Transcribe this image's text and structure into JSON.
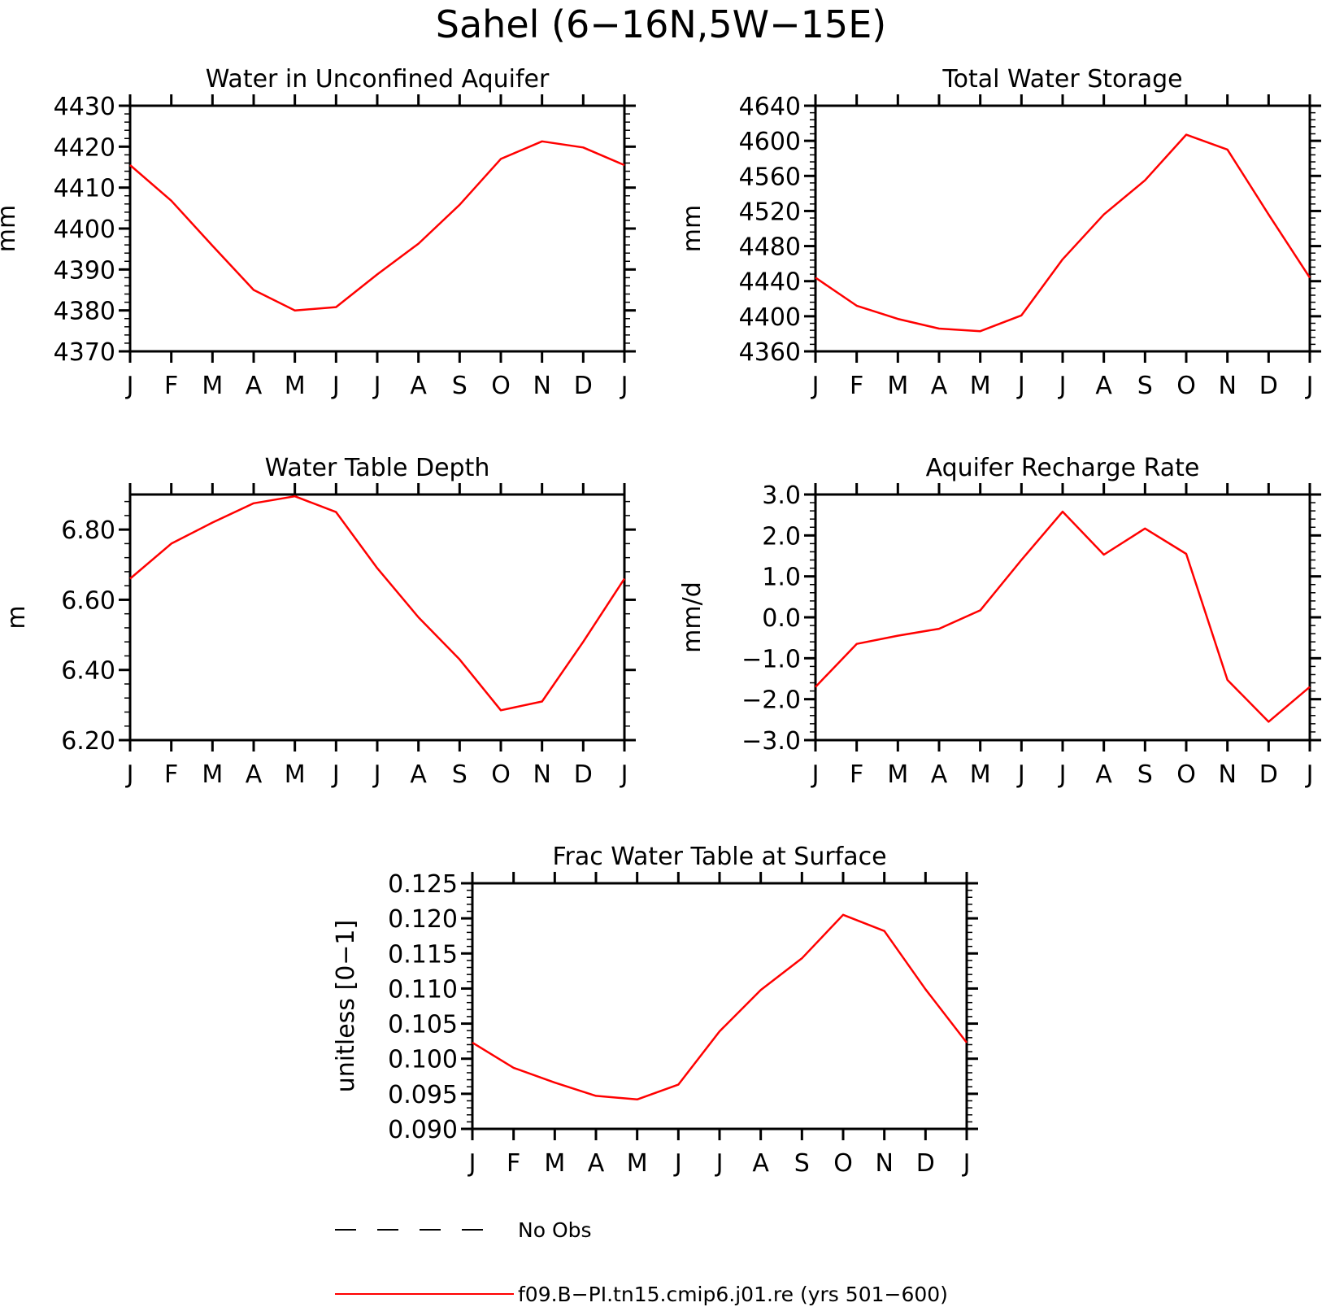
{
  "figure": {
    "title": "Sahel (6−16N,5W−15E)",
    "line_color": "#ff0000"
  },
  "legend": {
    "items": [
      {
        "label": "No Obs",
        "style": "dashed",
        "color": "#000000"
      },
      {
        "label": "f09.B−PI.tn15.cmip6.j01.re (yrs 501−600)",
        "style": "solid",
        "color": "#ff0000"
      }
    ]
  },
  "chart_data": [
    {
      "type": "line",
      "title": "Water in Unconfined Aquifer",
      "ylabel": "mm",
      "categories": [
        "J",
        "F",
        "M",
        "A",
        "M",
        "J",
        "J",
        "A",
        "S",
        "O",
        "N",
        "D",
        "J"
      ],
      "ylim": [
        4370,
        4430
      ],
      "yticks": [
        "4370",
        "4380",
        "4390",
        "4400",
        "4410",
        "4420",
        "4430"
      ],
      "series": [
        {
          "values": [
            4415.5,
            4406.8,
            4395.8,
            4385.0,
            4380.0,
            4380.8,
            4388.8,
            4396.3,
            4405.8,
            4417.0,
            4421.3,
            4419.8,
            4415.5
          ]
        }
      ]
    },
    {
      "type": "line",
      "title": "Total Water Storage",
      "ylabel": "mm",
      "categories": [
        "J",
        "F",
        "M",
        "A",
        "M",
        "J",
        "J",
        "A",
        "S",
        "O",
        "N",
        "D",
        "J"
      ],
      "ylim": [
        4360,
        4640
      ],
      "yticks": [
        "4360",
        "4400",
        "4440",
        "4480",
        "4520",
        "4560",
        "4600",
        "4640"
      ],
      "series": [
        {
          "values": [
            4444,
            4412,
            4397,
            4386,
            4383,
            4401,
            4465,
            4516,
            4555,
            4607,
            4590,
            4516,
            4444
          ]
        }
      ]
    },
    {
      "type": "line",
      "title": "Water Table Depth",
      "ylabel": "m",
      "categories": [
        "J",
        "F",
        "M",
        "A",
        "M",
        "J",
        "J",
        "A",
        "S",
        "O",
        "N",
        "D",
        "J"
      ],
      "ylim": [
        6.2,
        6.9
      ],
      "yticks": [
        "6.20",
        "6.40",
        "6.60",
        "6.80"
      ],
      "series": [
        {
          "values": [
            6.66,
            6.76,
            6.82,
            6.875,
            6.895,
            6.85,
            6.69,
            6.55,
            6.43,
            6.285,
            6.31,
            6.48,
            6.66
          ]
        }
      ]
    },
    {
      "type": "line",
      "title": "Aquifer Recharge Rate",
      "ylabel": "mm/d",
      "categories": [
        "J",
        "F",
        "M",
        "A",
        "M",
        "J",
        "J",
        "A",
        "S",
        "O",
        "N",
        "D",
        "J"
      ],
      "ylim": [
        -3.0,
        3.0
      ],
      "yticks": [
        "−3.0",
        "−2.0",
        "−1.0",
        "0.0",
        "1.0",
        "2.0",
        "3.0"
      ],
      "series": [
        {
          "values": [
            -1.7,
            -0.65,
            -0.45,
            -0.28,
            0.17,
            1.4,
            2.58,
            1.53,
            2.17,
            1.55,
            -1.53,
            -2.55,
            -1.7
          ]
        }
      ]
    },
    {
      "type": "line",
      "title": "Frac Water Table at Surface",
      "ylabel": "unitless [0−1]",
      "categories": [
        "J",
        "F",
        "M",
        "A",
        "M",
        "J",
        "J",
        "A",
        "S",
        "O",
        "N",
        "D",
        "J"
      ],
      "ylim": [
        0.09,
        0.125
      ],
      "yticks": [
        "0.090",
        "0.095",
        "0.100",
        "0.105",
        "0.110",
        "0.115",
        "0.120",
        "0.125"
      ],
      "series": [
        {
          "values": [
            0.1023,
            0.0987,
            0.0966,
            0.0947,
            0.0942,
            0.0963,
            0.1039,
            0.1098,
            0.1143,
            0.1205,
            0.1182,
            0.1099,
            0.1023
          ]
        }
      ]
    }
  ]
}
